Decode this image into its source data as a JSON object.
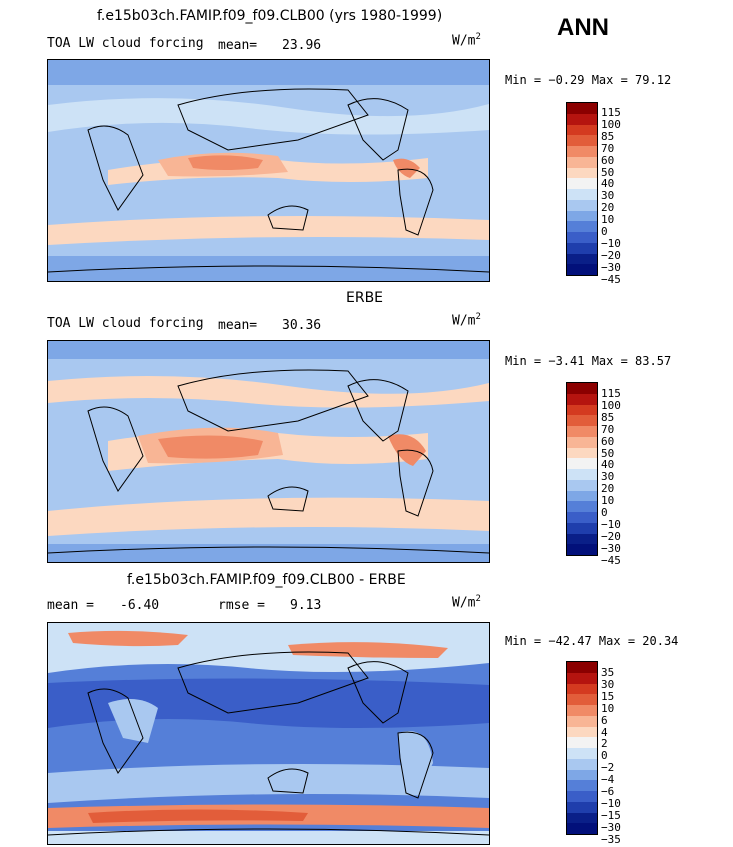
{
  "season": "ANN",
  "units_label": "W/m",
  "units_exp": "2",
  "panels": [
    {
      "title": "f.e15b03ch.FAMIP.f09_f09.CLB00 (yrs 1980-1999)",
      "field": "TOA LW cloud forcing",
      "stat_label": "mean=",
      "stat_value": "23.96",
      "minmax": "Min =  −0.29 Max =  79.12",
      "levels": [
        "115",
        "100",
        "85",
        "70",
        "60",
        "50",
        "40",
        "30",
        "20",
        "10",
        "0",
        "−10",
        "−20",
        "−30",
        "−45"
      ],
      "colors": [
        "#8b0000",
        "#b5140f",
        "#d43a20",
        "#e25d3a",
        "#f08a66",
        "#f8b595",
        "#fcd8c0",
        "#f3f3f3",
        "#cde2f6",
        "#a9c8f0",
        "#7ea7e6",
        "#557fd8",
        "#3a5ec8",
        "#1f3eac",
        "#0a1f88",
        "#02107a"
      ]
    },
    {
      "title": "ERBE",
      "field": "TOA LW cloud forcing",
      "stat_label": "mean=",
      "stat_value": "30.36",
      "minmax": "Min =  −3.41 Max =  83.57",
      "levels": [
        "115",
        "100",
        "85",
        "70",
        "60",
        "50",
        "40",
        "30",
        "20",
        "10",
        "0",
        "−10",
        "−20",
        "−30",
        "−45"
      ],
      "colors": [
        "#8b0000",
        "#b5140f",
        "#d43a20",
        "#e25d3a",
        "#f08a66",
        "#f8b595",
        "#fcd8c0",
        "#f3f3f3",
        "#cde2f6",
        "#a9c8f0",
        "#7ea7e6",
        "#557fd8",
        "#3a5ec8",
        "#1f3eac",
        "#0a1f88",
        "#02107a"
      ]
    },
    {
      "title": "f.e15b03ch.FAMIP.f09_f09.CLB00 - ERBE",
      "field": "",
      "stat_label": "mean =",
      "stat_value": "-6.40",
      "rmse_label": "rmse =",
      "rmse_value": "9.13",
      "minmax": "Min = −42.47 Max =  20.34",
      "levels": [
        "35",
        "30",
        "15",
        "10",
        "6",
        "4",
        "2",
        "0",
        "−2",
        "−4",
        "−6",
        "−10",
        "−15",
        "−30",
        "−35"
      ],
      "colors": [
        "#8b0000",
        "#b5140f",
        "#d43a20",
        "#e25d3a",
        "#f08a66",
        "#f8b595",
        "#fcd8c0",
        "#f3f3f3",
        "#cde2f6",
        "#a9c8f0",
        "#7ea7e6",
        "#557fd8",
        "#3a5ec8",
        "#1f3eac",
        "#0a1f88",
        "#02107a"
      ]
    }
  ]
}
